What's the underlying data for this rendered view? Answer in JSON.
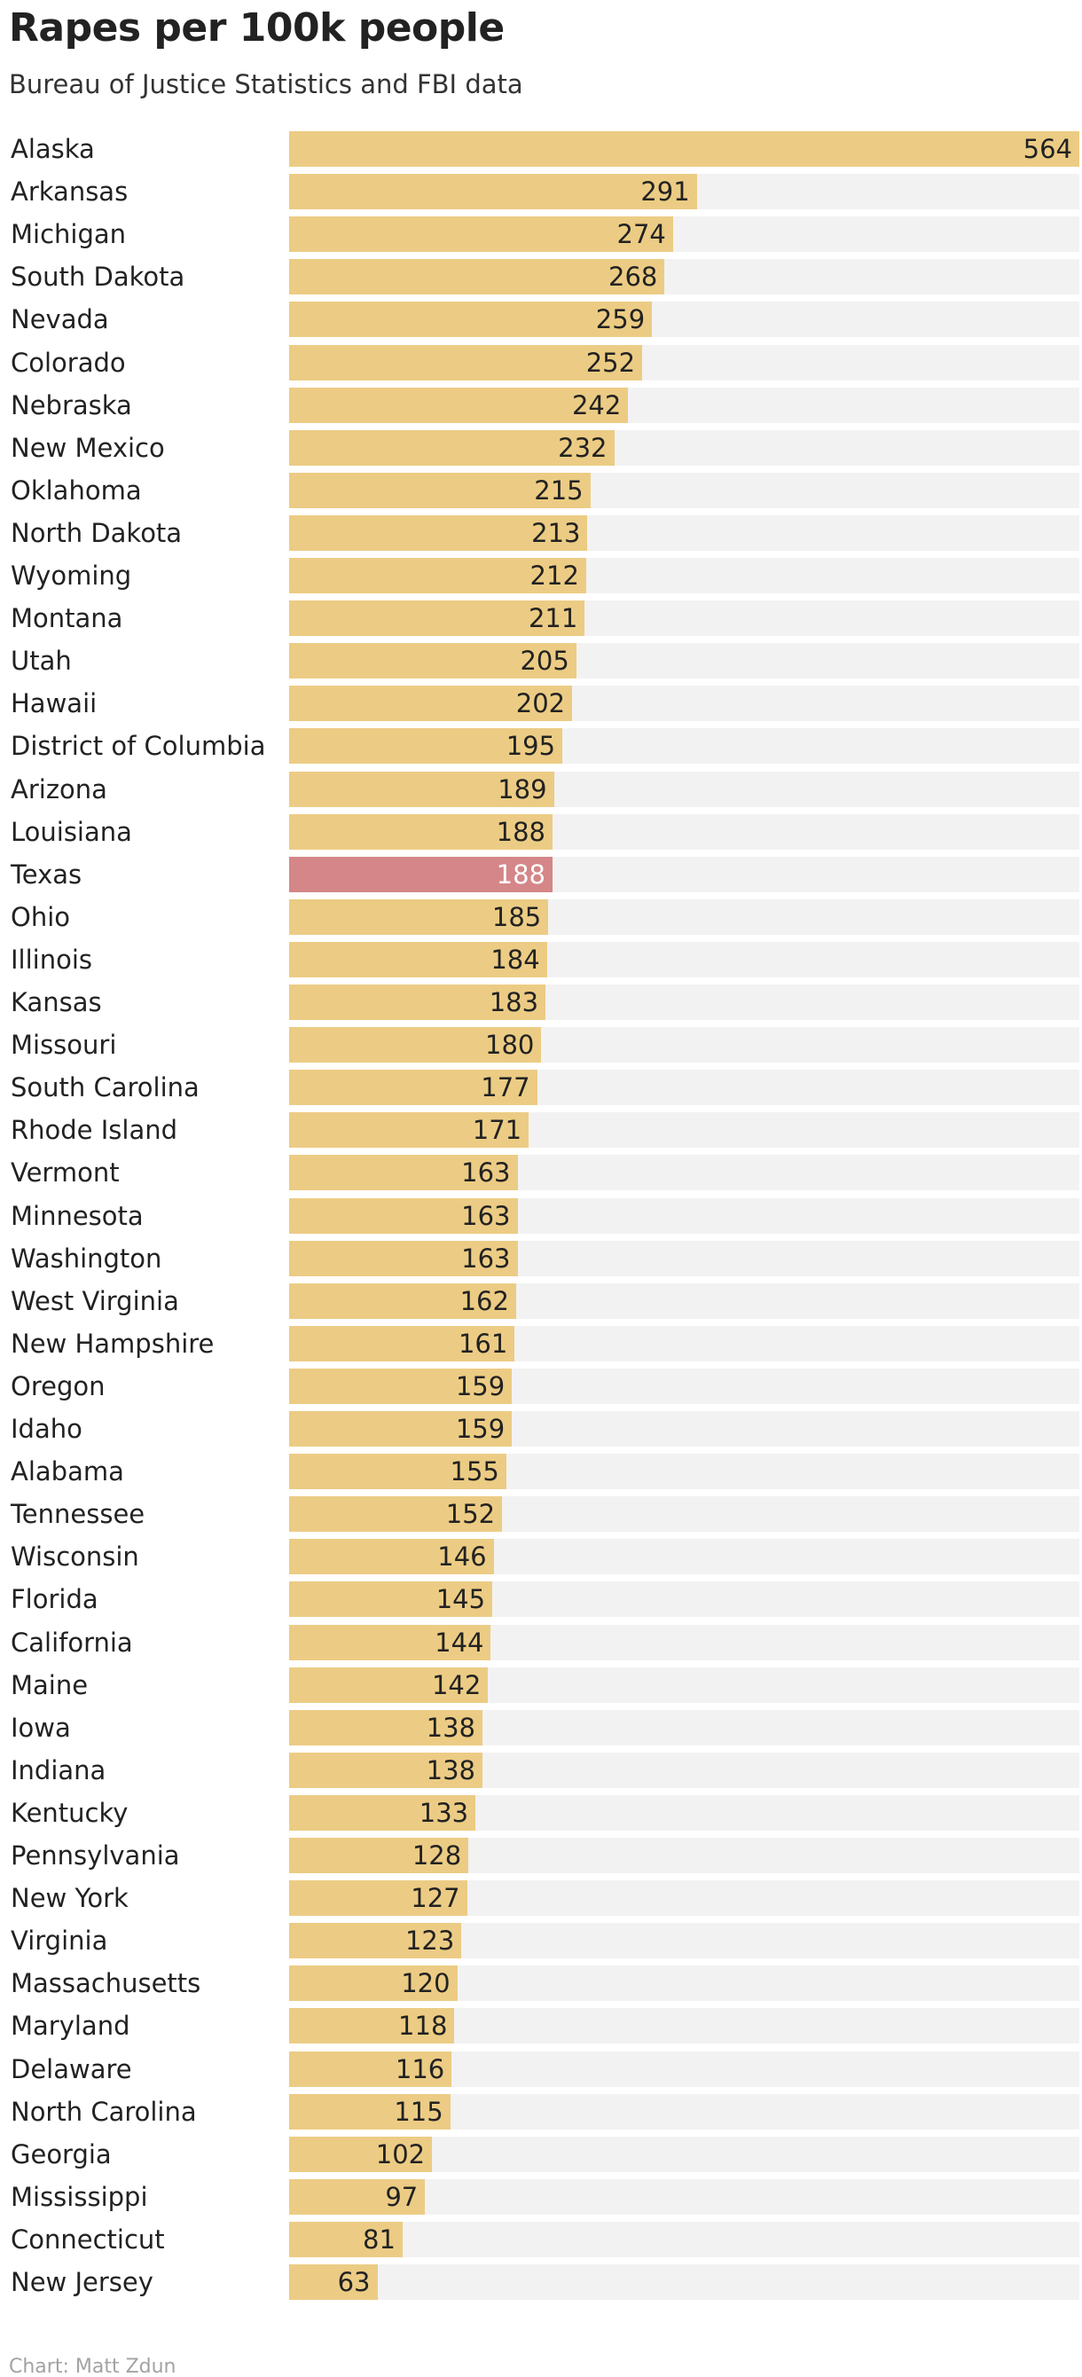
{
  "header": {
    "title": "Rapes per 100k people",
    "subtitle": "Bureau of Justice Statistics and FBI data"
  },
  "footer": {
    "credit": "Chart: Matt Zdun"
  },
  "colors": {
    "bar": "#eccc84",
    "highlight": "#d48688",
    "track": "#f2f2f2"
  },
  "chart_data": {
    "type": "bar",
    "orientation": "horizontal",
    "title": "Rapes per 100k people",
    "subtitle": "Bureau of Justice Statistics and FBI data",
    "xlim": [
      0,
      564
    ],
    "grid": false,
    "highlighted_category": "Texas",
    "categories": [
      "Alaska",
      "Arkansas",
      "Michigan",
      "South Dakota",
      "Nevada",
      "Colorado",
      "Nebraska",
      "New Mexico",
      "Oklahoma",
      "North Dakota",
      "Wyoming",
      "Montana",
      "Utah",
      "Hawaii",
      "District of Columbia",
      "Arizona",
      "Louisiana",
      "Texas",
      "Ohio",
      "Illinois",
      "Kansas",
      "Missouri",
      "South Carolina",
      "Rhode Island",
      "Vermont",
      "Minnesota",
      "Washington",
      "West Virginia",
      "New Hampshire",
      "Oregon",
      "Idaho",
      "Alabama",
      "Tennessee",
      "Wisconsin",
      "Florida",
      "California",
      "Maine",
      "Iowa",
      "Indiana",
      "Kentucky",
      "Pennsylvania",
      "New York",
      "Virginia",
      "Massachusetts",
      "Maryland",
      "Delaware",
      "North Carolina",
      "Georgia",
      "Mississippi",
      "Connecticut",
      "New Jersey"
    ],
    "values": [
      564,
      291,
      274,
      268,
      259,
      252,
      242,
      232,
      215,
      213,
      212,
      211,
      205,
      202,
      195,
      189,
      188,
      188,
      185,
      184,
      183,
      180,
      177,
      171,
      163,
      163,
      163,
      162,
      161,
      159,
      159,
      155,
      152,
      146,
      145,
      144,
      142,
      138,
      138,
      133,
      128,
      127,
      123,
      120,
      118,
      116,
      115,
      102,
      97,
      81,
      63
    ]
  }
}
